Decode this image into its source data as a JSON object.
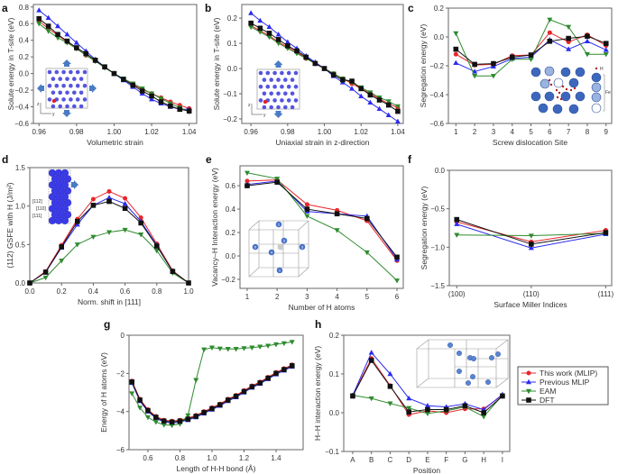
{
  "legend": {
    "entries": [
      {
        "name": "This work (MLIP)",
        "color": "#e8262a",
        "marker": "circle"
      },
      {
        "name": "Previous MLIP",
        "color": "#2b2bf0",
        "marker": "triangle-up"
      },
      {
        "name": "EAM",
        "color": "#2e8b2e",
        "marker": "triangle-down"
      },
      {
        "name": "DFT",
        "color": "#111111",
        "marker": "square"
      }
    ],
    "placement": "right of panel h"
  },
  "insets": {
    "a": {
      "axis_labels": [
        "z",
        "y"
      ]
    },
    "b": {
      "axis_labels": [
        "z",
        "y"
      ]
    },
    "c": {
      "h_label": "H",
      "fe_label": "Fe",
      "sites": [
        "1",
        "2",
        "3",
        "4",
        "5",
        "6",
        "7",
        "8",
        "9"
      ]
    },
    "d": {
      "directions": [
        "[112]",
        "[110]",
        "[111]"
      ]
    },
    "e": {
      "atoms": [
        "1",
        "2",
        "3",
        "4",
        "5",
        "6"
      ]
    }
  },
  "chart_data": [
    {
      "panel": "a",
      "type": "line",
      "xlabel": "Volumetric strain",
      "ylabel": "Solute energy in T-site (eV)",
      "xlim": [
        0.957,
        1.044
      ],
      "ylim": [
        -0.6,
        0.83
      ],
      "xticks": [
        0.96,
        0.98,
        1.0,
        1.02,
        1.04
      ],
      "xticklabels": [
        "0.96",
        "0.98",
        "1.00",
        "1.02",
        "1.04"
      ],
      "yticks": [
        -0.6,
        -0.4,
        -0.2,
        0.0,
        0.2,
        0.4,
        0.6,
        0.8
      ],
      "yticklabels": [
        "−0.6",
        "−0.4",
        "−0.2",
        "0.0",
        "0.2",
        "0.4",
        "0.6",
        "0.8"
      ],
      "x": [
        0.96,
        0.965,
        0.97,
        0.975,
        0.98,
        0.985,
        0.99,
        0.995,
        1.0,
        1.005,
        1.01,
        1.015,
        1.02,
        1.025,
        1.03,
        1.035,
        1.04
      ],
      "series": [
        {
          "name": "This work (MLIP)",
          "values": [
            0.63,
            0.54,
            0.46,
            0.38,
            0.3,
            0.22,
            0.15,
            0.08,
            0,
            -0.07,
            -0.13,
            -0.19,
            -0.24,
            -0.29,
            -0.34,
            -0.38,
            -0.42
          ]
        },
        {
          "name": "Previous MLIP",
          "values": [
            0.76,
            0.67,
            0.57,
            0.47,
            0.37,
            0.27,
            0.17,
            0.08,
            0,
            -0.08,
            -0.16,
            -0.24,
            -0.31,
            -0.36,
            -0.4,
            -0.43,
            -0.43
          ]
        },
        {
          "name": "EAM",
          "values": [
            0.6,
            0.51,
            0.43,
            0.37,
            0.3,
            0.22,
            0.15,
            0.07,
            0,
            -0.06,
            -0.12,
            -0.18,
            -0.24,
            -0.3,
            -0.36,
            -0.41,
            -0.46
          ]
        },
        {
          "name": "DFT",
          "values": [
            0.66,
            0.57,
            0.47,
            0.39,
            0.31,
            0.24,
            0.16,
            0.08,
            0,
            -0.07,
            -0.14,
            -0.21,
            -0.27,
            -0.34,
            -0.39,
            -0.43,
            -0.45
          ]
        }
      ]
    },
    {
      "panel": "b",
      "type": "line",
      "xlabel": "Uniaxial strain in z-direction",
      "ylabel": "Solute energy in T-site (eV)",
      "xlim": [
        0.955,
        1.043
      ],
      "ylim": [
        -0.218,
        0.254
      ],
      "xticks": [
        0.96,
        0.98,
        1.0,
        1.02,
        1.04
      ],
      "xticklabels": [
        "0.96",
        "0.98",
        "1.00",
        "1.02",
        "1.04"
      ],
      "yticks": [
        -0.2,
        -0.1,
        0.0,
        0.1,
        0.2
      ],
      "yticklabels": [
        "−0.2",
        "−0.1",
        "0.0",
        "0.1",
        "0.2"
      ],
      "x": [
        0.96,
        0.965,
        0.97,
        0.975,
        0.98,
        0.985,
        0.99,
        0.995,
        1.0,
        1.005,
        1.01,
        1.015,
        1.02,
        1.025,
        1.03,
        1.035,
        1.04
      ],
      "series": [
        {
          "name": "This work (MLIP)",
          "values": [
            0.17,
            0.15,
            0.13,
            0.105,
            0.085,
            0.065,
            0.04,
            0.02,
            0,
            -0.02,
            -0.04,
            -0.06,
            -0.08,
            -0.1,
            -0.12,
            -0.14,
            -0.155
          ]
        },
        {
          "name": "Previous MLIP",
          "values": [
            0.22,
            0.19,
            0.165,
            0.135,
            0.105,
            0.08,
            0.05,
            0.025,
            0,
            -0.03,
            -0.055,
            -0.08,
            -0.11,
            -0.135,
            -0.16,
            -0.185,
            -0.21
          ]
        },
        {
          "name": "EAM",
          "values": [
            0.165,
            0.145,
            0.125,
            0.1,
            0.08,
            0.06,
            0.04,
            0.02,
            0,
            -0.02,
            -0.04,
            -0.055,
            -0.075,
            -0.095,
            -0.115,
            -0.13,
            -0.15
          ]
        },
        {
          "name": "DFT",
          "values": [
            0.18,
            0.16,
            0.14,
            0.115,
            0.09,
            0.07,
            0.045,
            0.02,
            0,
            -0.025,
            -0.045,
            -0.05,
            -0.08,
            -0.105,
            -0.125,
            -0.145,
            -0.17
          ]
        }
      ]
    },
    {
      "panel": "c",
      "type": "line",
      "xlabel": "Screw dislocation Site",
      "ylabel": "Segregation energy (eV)",
      "xlim": [
        0.6,
        9.3
      ],
      "ylim": [
        -0.6,
        0.2
      ],
      "xticks": [
        1,
        2,
        3,
        4,
        5,
        6,
        7,
        8,
        9
      ],
      "xticklabels": [
        "1",
        "2",
        "3",
        "4",
        "5",
        "6",
        "7",
        "8",
        "9"
      ],
      "yticks": [
        -0.6,
        -0.4,
        -0.2,
        0.0,
        0.2
      ],
      "yticklabels": [
        "−0.6",
        "−0.4",
        "−0.2",
        "0.0",
        "0.2"
      ],
      "x": [
        1,
        2,
        3,
        4,
        5,
        6,
        7,
        8,
        9
      ],
      "series": [
        {
          "name": "This work (MLIP)",
          "values": [
            -0.12,
            -0.195,
            -0.19,
            -0.13,
            -0.125,
            0.03,
            -0.035,
            0.015,
            -0.06
          ]
        },
        {
          "name": "Previous MLIP",
          "values": [
            -0.18,
            -0.24,
            -0.205,
            -0.15,
            -0.14,
            -0.02,
            -0.085,
            -0.03,
            -0.09
          ]
        },
        {
          "name": "EAM",
          "values": [
            0.025,
            -0.27,
            -0.27,
            -0.155,
            -0.155,
            0.12,
            0.07,
            -0.12,
            -0.12
          ]
        },
        {
          "name": "DFT",
          "values": [
            -0.085,
            -0.19,
            -0.185,
            -0.14,
            -0.125,
            -0.03,
            -0.01,
            0.005,
            -0.045
          ]
        }
      ]
    },
    {
      "panel": "d",
      "type": "line",
      "xlabel": "Norm. shift in [111]",
      "ylabel": "(112) GSFE with H (J/m²)",
      "xlim": [
        0,
        1
      ],
      "ylim": [
        0,
        1.5
      ],
      "xticks": [
        0,
        0.2,
        0.4,
        0.6,
        0.8,
        1.0
      ],
      "xticklabels": [
        "0.0",
        "0.2",
        "0.4",
        "0.6",
        "0.8",
        "1.0"
      ],
      "yticks": [
        0,
        0.5,
        1.0,
        1.5
      ],
      "yticklabels": [
        "0.0",
        "0.5",
        "1.0",
        "1.5"
      ],
      "x": [
        0,
        0.1,
        0.2,
        0.3,
        0.4,
        0.5,
        0.6,
        0.7,
        0.8,
        0.9,
        1.0
      ],
      "series": [
        {
          "name": "This work (MLIP)",
          "values": [
            0,
            0.15,
            0.49,
            0.83,
            1.09,
            1.19,
            1.1,
            0.85,
            0.51,
            0.16,
            0
          ]
        },
        {
          "name": "Previous MLIP",
          "values": [
            0,
            0.14,
            0.46,
            0.76,
            1.01,
            1.11,
            1.03,
            0.8,
            0.49,
            0.15,
            0
          ]
        },
        {
          "name": "EAM",
          "values": [
            0,
            0.07,
            0.29,
            0.5,
            0.6,
            0.66,
            0.69,
            0.63,
            0.42,
            0.13,
            0
          ]
        },
        {
          "name": "DFT",
          "values": [
            0,
            0.14,
            0.47,
            0.8,
            1.01,
            1.06,
            0.97,
            0.78,
            0.48,
            0.15,
            0
          ]
        }
      ]
    },
    {
      "panel": "e",
      "type": "line",
      "xlabel": "Number of H atoms",
      "ylabel": "Vacancy–H Interaction energy (eV)",
      "xlim": [
        0.76,
        6.21
      ],
      "ylim": [
        -0.277,
        0.77
      ],
      "xticks": [
        1,
        2,
        3,
        4,
        5,
        6
      ],
      "xticklabels": [
        "1",
        "2",
        "3",
        "4",
        "5",
        "6"
      ],
      "yticks": [
        -0.2,
        0.0,
        0.2,
        0.4,
        0.6
      ],
      "yticklabels": [
        "−0.2",
        "0.0",
        "0.2",
        "0.4",
        "0.6"
      ],
      "x": [
        1,
        2,
        3,
        4,
        5,
        6
      ],
      "series": [
        {
          "name": "This work (MLIP)",
          "values": [
            0.64,
            0.65,
            0.44,
            0.39,
            0.3,
            -0.04
          ]
        },
        {
          "name": "Previous MLIP",
          "values": [
            0.61,
            0.64,
            0.38,
            0.36,
            0.34,
            -0.03
          ]
        },
        {
          "name": "EAM",
          "values": [
            0.71,
            0.66,
            0.34,
            0.22,
            0.03,
            -0.21
          ]
        },
        {
          "name": "DFT",
          "values": [
            0.6,
            0.63,
            0.4,
            0.36,
            0.32,
            -0.01
          ]
        }
      ]
    },
    {
      "panel": "f",
      "type": "line",
      "xlabel": "Surface Miller Indices",
      "ylabel": "Segregation energy (eV)",
      "xlim": [
        -0.1,
        2.08
      ],
      "ylim": [
        -1.5,
        0
      ],
      "xticks": [
        0,
        1,
        2
      ],
      "xticklabels": [
        "(100)",
        "(110)",
        "(111)"
      ],
      "yticks": [
        -1.5,
        -1.0,
        -0.5,
        0.0
      ],
      "yticklabels": [
        "−1.5",
        "−1.0",
        "−0.5",
        "0.0"
      ],
      "x": [
        0,
        1,
        2
      ],
      "series": [
        {
          "name": "This work (MLIP)",
          "values": [
            -0.67,
            -0.93,
            -0.78
          ]
        },
        {
          "name": "Previous MLIP",
          "values": [
            -0.7,
            -1.01,
            -0.83
          ]
        },
        {
          "name": "EAM",
          "values": [
            -0.84,
            -0.85,
            -0.82
          ]
        },
        {
          "name": "DFT",
          "values": [
            -0.64,
            -0.96,
            -0.81
          ]
        }
      ]
    },
    {
      "panel": "g",
      "type": "line",
      "xlabel": "Length of H-H bond (Å)",
      "ylabel": "Energy of H atoms (eV)",
      "xlim": [
        0.482,
        1.569
      ],
      "ylim": [
        -6,
        0
      ],
      "xticks": [
        0.6,
        0.8,
        1.0,
        1.2,
        1.4
      ],
      "xticklabels": [
        "0.6",
        "0.8",
        "1.0",
        "1.2",
        "1.4"
      ],
      "yticks": [
        -6,
        -4,
        -2,
        0
      ],
      "yticklabels": [
        "−6",
        "−4",
        "−2",
        "0"
      ],
      "x": [
        0.5,
        0.55,
        0.6,
        0.65,
        0.7,
        0.75,
        0.8,
        0.85,
        0.9,
        0.95,
        1.0,
        1.05,
        1.1,
        1.15,
        1.2,
        1.25,
        1.3,
        1.35,
        1.4,
        1.45,
        1.5
      ],
      "series": [
        {
          "name": "This work (MLIP)",
          "values": [
            -2.4,
            -3.35,
            -3.9,
            -4.25,
            -4.45,
            -4.5,
            -4.45,
            -4.35,
            -4.2,
            -4.0,
            -3.8,
            -3.6,
            -3.35,
            -3.15,
            -2.9,
            -2.65,
            -2.45,
            -2.2,
            -1.95,
            -1.75,
            -1.55
          ]
        },
        {
          "name": "Previous MLIP",
          "values": [
            -2.5,
            -3.45,
            -4.0,
            -4.35,
            -4.55,
            -4.6,
            -4.55,
            -4.45,
            -4.3,
            -4.1,
            -3.9,
            -3.7,
            -3.45,
            -3.25,
            -3.0,
            -2.75,
            -2.55,
            -2.3,
            -2.05,
            -1.85,
            -1.65
          ]
        },
        {
          "name": "EAM",
          "values": [
            -3.05,
            -3.8,
            -4.3,
            -4.55,
            -4.7,
            -4.72,
            -4.65,
            -4.2,
            -2.35,
            -0.75,
            -0.65,
            -0.7,
            -0.72,
            -0.72,
            -0.68,
            -0.65,
            -0.6,
            -0.55,
            -0.48,
            -0.42,
            -0.35
          ]
        },
        {
          "name": "DFT",
          "values": [
            -2.45,
            -3.4,
            -3.95,
            -4.3,
            -4.5,
            -4.55,
            -4.5,
            -4.4,
            -4.25,
            -4.05,
            -3.85,
            -3.65,
            -3.4,
            -3.2,
            -2.95,
            -2.7,
            -2.5,
            -2.25,
            -2.0,
            -1.8,
            -1.6
          ]
        }
      ]
    },
    {
      "panel": "h",
      "type": "line",
      "xlabel": "Position",
      "ylabel": "H–H interaction energy (eV)",
      "xlim": [
        -0.48,
        8.39
      ],
      "ylim": [
        -0.1,
        0.2
      ],
      "xticks": [
        0,
        1,
        2,
        3,
        4,
        5,
        6,
        7,
        8
      ],
      "xticklabels": [
        "A",
        "B",
        "C",
        "D",
        "E",
        "F",
        "G",
        "H",
        "I"
      ],
      "yticks": [
        -0.1,
        0.0,
        0.1,
        0.2
      ],
      "yticklabels": [
        "−0.1",
        "0.0",
        "0.1",
        "0.2"
      ],
      "x": [
        0,
        1,
        2,
        3,
        4,
        5,
        6,
        7,
        8
      ],
      "series": [
        {
          "name": "This work (MLIP)",
          "values": [
            0.045,
            0.14,
            0.07,
            -0.005,
            0.005,
            0.0,
            0.01,
            0.01,
            0.045
          ]
        },
        {
          "name": "Previous MLIP",
          "values": [
            0.045,
            0.155,
            0.1,
            0.037,
            0.018,
            0.015,
            0.023,
            0.008,
            0.047
          ]
        },
        {
          "name": "EAM",
          "values": [
            0.045,
            0.037,
            0.024,
            0.012,
            -0.002,
            0.005,
            0.015,
            -0.01,
            0.045
          ]
        },
        {
          "name": "DFT",
          "values": [
            0.043,
            0.135,
            0.068,
            0.002,
            0.008,
            0.008,
            0.018,
            0.0,
            0.043
          ]
        }
      ]
    }
  ]
}
